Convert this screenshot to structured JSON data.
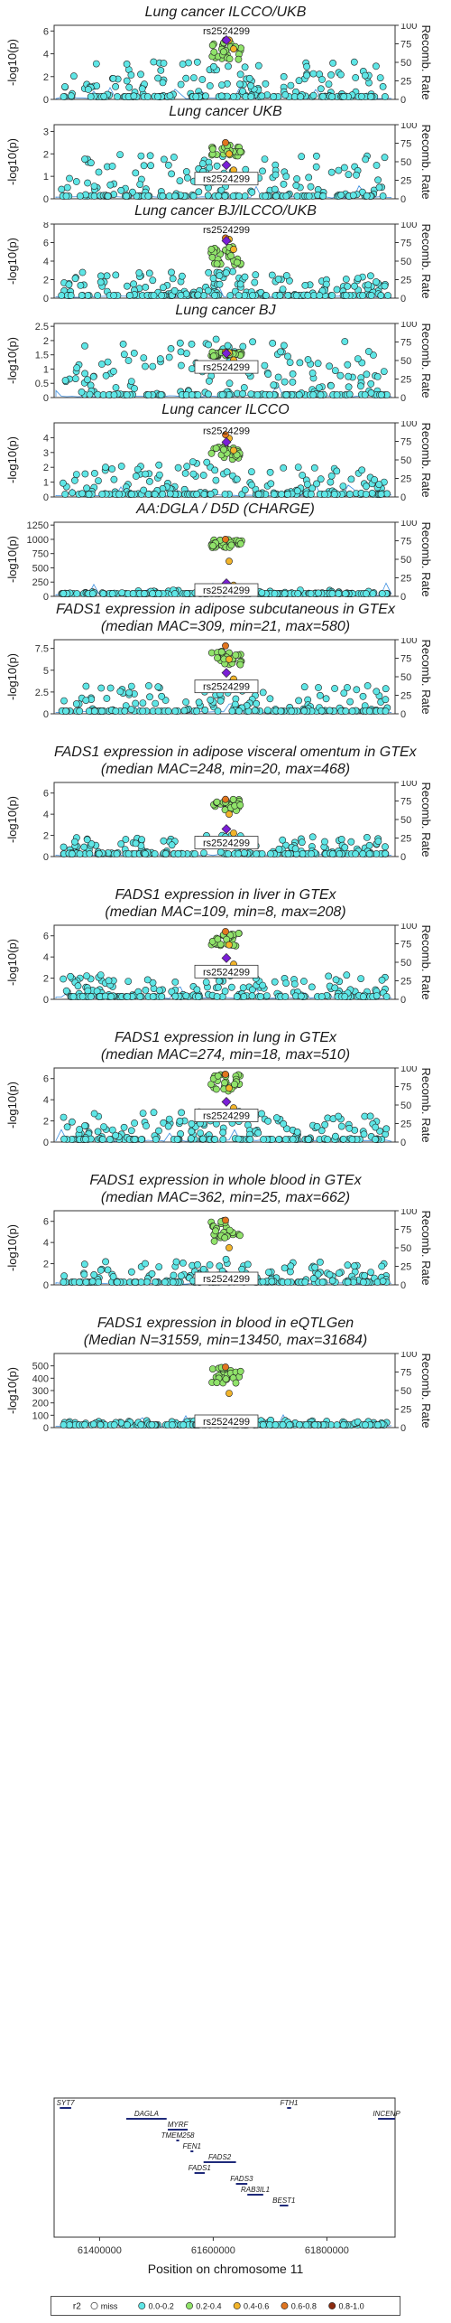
{
  "figure": {
    "r2_colors": {
      "miss": "#ffffff",
      "0.0-0.2": "#5ee6e6",
      "0.2-0.4": "#90e36a",
      "0.4-0.6": "#f2b42a",
      "0.6-0.8": "#e0751f",
      "0.8-1.0": "#8b2a0e",
      "lead": "#7a1fd6"
    },
    "recomb_color": "#3d8fe0",
    "lead_snp": "rs2524299",
    "legend": {
      "title": "r2",
      "items": [
        "miss",
        "0.0-0.2",
        "0.2-0.4",
        "0.4-0.6",
        "0.6-0.8",
        "0.8-1.0"
      ]
    }
  },
  "chart_data": [
    {
      "type": "scatter",
      "title": "Lung cancer ILCCO/UKB",
      "subtitle": "",
      "ylabel": "-log10(p)",
      "y2label": "Recomb. Rate",
      "ylim": [
        0,
        6.5
      ],
      "yticks": [
        0,
        2,
        4,
        6
      ],
      "y2ticks": [
        0,
        25,
        50,
        75,
        100
      ],
      "lead_label": "rs2524299",
      "lead_value": 5.2,
      "label_pos": "above",
      "peak": 5.2,
      "bg_max": 3.3,
      "green_band": [
        3.5,
        5.0
      ],
      "bins": [
        0,
        10
      ]
    },
    {
      "type": "scatter",
      "title": "Lung cancer UKB",
      "subtitle": "",
      "ylabel": "-log10(p)",
      "y2label": "Recomb. Rate",
      "ylim": [
        0,
        3.3
      ],
      "yticks": [
        0,
        1,
        2,
        3
      ],
      "y2ticks": [
        0,
        25,
        50,
        75,
        100
      ],
      "lead_label": "rs2524299",
      "lead_value": 1.5,
      "label_pos": "below",
      "peak": 2.5,
      "bg_max": 2.0,
      "green_band": [
        1.9,
        2.4
      ],
      "bins": [
        1,
        11
      ]
    },
    {
      "type": "scatter",
      "title": "Lung cancer BJ/ILCCO/UKB",
      "subtitle": "",
      "ylabel": "-log10(p)",
      "y2label": "Recomb. Rate",
      "ylim": [
        0,
        8
      ],
      "yticks": [
        0,
        2,
        4,
        6,
        8
      ],
      "y2ticks": [
        0,
        25,
        50,
        75,
        100
      ],
      "lead_label": "rs2524299",
      "lead_value": 6.2,
      "label_pos": "above",
      "peak": 6.5,
      "bg_max": 2.8,
      "green_band": [
        3.5,
        5.8
      ],
      "bins": [
        2,
        12
      ]
    },
    {
      "type": "scatter",
      "title": "Lung cancer BJ",
      "subtitle": "",
      "ylabel": "-log10(p)",
      "y2label": "Recomb. Rate",
      "ylim": [
        0,
        2.6
      ],
      "yticks": [
        0,
        0.5,
        1.0,
        1.5,
        2.0,
        2.5
      ],
      "y2ticks": [
        0,
        25,
        50,
        75,
        100
      ],
      "lead_label": "rs2524299",
      "lead_value": 1.55,
      "label_pos": "below",
      "peak": 1.6,
      "bg_max": 2.0,
      "green_band": [
        1.45,
        1.6
      ],
      "bins": [
        3,
        13
      ]
    },
    {
      "type": "scatter",
      "title": "Lung cancer ILCCO",
      "subtitle": "",
      "ylabel": "-log10(p)",
      "y2label": "Recomb. Rate",
      "ylim": [
        0,
        5
      ],
      "yticks": [
        0,
        1,
        2,
        3,
        4
      ],
      "y2ticks": [
        0,
        25,
        50,
        75,
        100
      ],
      "lead_label": "rs2524299",
      "lead_value": 3.7,
      "label_pos": "above",
      "peak": 4.2,
      "bg_max": 2.4,
      "green_band": [
        2.5,
        3.5
      ],
      "bins": [
        4,
        14
      ]
    },
    {
      "type": "scatter",
      "title": "AA:DGLA / D5D (CHARGE)",
      "subtitle": "",
      "ylabel": "-log10(p)",
      "y2label": "Recomb. Rate",
      "ylim": [
        0,
        1300
      ],
      "yticks": [
        0,
        250,
        500,
        750,
        1000,
        1250
      ],
      "y2ticks": [
        0,
        25,
        50,
        75,
        100
      ],
      "lead_label": "rs2524299",
      "lead_value": 230,
      "label_pos": "below",
      "peak": 1000,
      "bg_max": 110,
      "green_band": [
        850,
        1000
      ],
      "bins": [
        5,
        15
      ]
    },
    {
      "type": "scatter",
      "title": "FADS1 expression in adipose subcutaneous in GTEx",
      "subtitle": "(median MAC=309, min=21, max=580)",
      "ylabel": "-log10(p)",
      "y2label": "Recomb. Rate",
      "ylim": [
        0,
        8.5
      ],
      "yticks": [
        0,
        2.5,
        5.0,
        7.5
      ],
      "y2ticks": [
        0,
        25,
        50,
        75,
        100
      ],
      "lead_label": "rs2524299",
      "lead_value": 4.7,
      "label_pos": "below",
      "peak": 7.8,
      "bg_max": 3.3,
      "green_band": [
        5.5,
        7.2
      ],
      "bins": [
        6,
        16
      ]
    },
    {
      "type": "scatter",
      "title": "FADS1 expression in adipose visceral omentum in GTEx",
      "subtitle": "(median MAC=248, min=20, max=468)",
      "ylabel": "-log10(p)",
      "y2label": "Recomb. Rate",
      "ylim": [
        0,
        7
      ],
      "yticks": [
        0,
        2,
        4,
        6
      ],
      "y2ticks": [
        0,
        25,
        50,
        75,
        100
      ],
      "lead_label": "rs2524299",
      "lead_value": 2.6,
      "label_pos": "below",
      "peak": 5.4,
      "bg_max": 1.9,
      "green_band": [
        4.3,
        5.4
      ],
      "bins": [
        7,
        17
      ]
    },
    {
      "type": "scatter",
      "title": "FADS1 expression in liver in GTEx",
      "subtitle": "(median MAC=109, min=8, max=208)",
      "ylabel": "-log10(p)",
      "y2label": "Recomb. Rate",
      "ylim": [
        0,
        7
      ],
      "yticks": [
        0,
        2,
        4,
        6
      ],
      "y2ticks": [
        0,
        25,
        50,
        75,
        100
      ],
      "lead_label": "rs2524299",
      "lead_value": 3.9,
      "label_pos": "below",
      "peak": 6.4,
      "bg_max": 2.3,
      "green_band": [
        5.0,
        6.4
      ],
      "bins": [
        8,
        18
      ]
    },
    {
      "type": "scatter",
      "title": "FADS1 expression in lung in GTEx",
      "subtitle": "(median MAC=274, min=18, max=510)",
      "ylabel": "-log10(p)",
      "y2label": "Recomb. Rate",
      "ylim": [
        0,
        7
      ],
      "yticks": [
        0,
        2,
        4,
        6
      ],
      "y2ticks": [
        0,
        25,
        50,
        75,
        100
      ],
      "lead_label": "rs2524299",
      "lead_value": 3.8,
      "label_pos": "below",
      "peak": 6.4,
      "bg_max": 2.9,
      "green_band": [
        4.8,
        6.4
      ],
      "bins": [
        9,
        19
      ]
    },
    {
      "type": "scatter",
      "title": "FADS1 expression in whole blood in GTEx",
      "subtitle": "(median MAC=362, min=25, max=662)",
      "ylabel": "-log10(p)",
      "y2label": "Recomb. Rate",
      "ylim": [
        0,
        7
      ],
      "yticks": [
        0,
        2,
        4,
        6
      ],
      "y2ticks": [
        0,
        25,
        50,
        75,
        100
      ],
      "lead_label": "rs2524299",
      "lead_value": 0.9,
      "label_pos": "below",
      "peak": 6.1,
      "bg_max": 2.2,
      "green_band": [
        4.0,
        6.1
      ],
      "bins": [
        10,
        20
      ]
    },
    {
      "type": "scatter",
      "title": "FADS1 expression in blood in eQTLGen",
      "subtitle": "(Median N=31559, min=13450, max=31684)",
      "ylabel": "-log10(p)",
      "y2label": "Recomb. Rate",
      "ylim": [
        0,
        600
      ],
      "yticks": [
        0,
        100,
        200,
        300,
        400,
        500
      ],
      "y2ticks": [
        0,
        25,
        50,
        75,
        100
      ],
      "lead_label": "rs2524299",
      "lead_value": 65,
      "label_pos": "below",
      "peak": 490,
      "bg_max": 60,
      "green_band": [
        360,
        490
      ],
      "bins": [
        11,
        21
      ]
    }
  ],
  "gene_track": {
    "xlabel": "Position on chromosome 11",
    "xlim": [
      61320000,
      61920000
    ],
    "xticks": [
      61400000,
      61600000,
      61800000
    ],
    "xtick_labels": [
      "61400000",
      "61600000",
      "61800000"
    ],
    "genes": [
      {
        "name": "SYT7",
        "start": 61330000,
        "end": 61350000,
        "row": 0
      },
      {
        "name": "FTH1",
        "start": 61730000,
        "end": 61737000,
        "row": 0
      },
      {
        "name": "INCENP",
        "start": 61890000,
        "end": 61920000,
        "row": 1
      },
      {
        "name": "DAGLA",
        "start": 61447000,
        "end": 61518000,
        "row": 1
      },
      {
        "name": "MYRF",
        "start": 61520000,
        "end": 61555000,
        "row": 2
      },
      {
        "name": "TMEM258",
        "start": 61535000,
        "end": 61540000,
        "row": 3
      },
      {
        "name": "FEN1",
        "start": 61560000,
        "end": 61565000,
        "row": 4
      },
      {
        "name": "FADS2",
        "start": 61583000,
        "end": 61640000,
        "row": 5
      },
      {
        "name": "FADS1",
        "start": 61567000,
        "end": 61585000,
        "row": 6
      },
      {
        "name": "FADS3",
        "start": 61640000,
        "end": 61660000,
        "row": 7
      },
      {
        "name": "RAB3IL1",
        "start": 61660000,
        "end": 61688000,
        "row": 8
      },
      {
        "name": "BEST1",
        "start": 61717000,
        "end": 61732000,
        "row": 9
      }
    ]
  }
}
